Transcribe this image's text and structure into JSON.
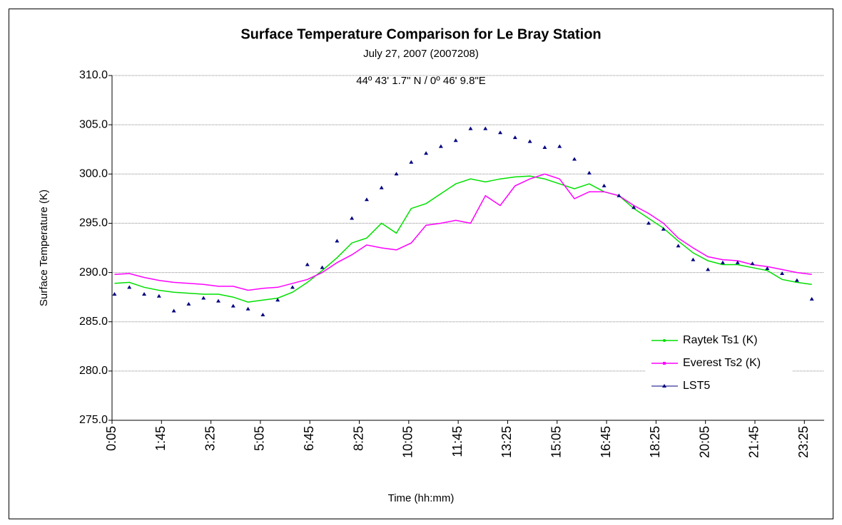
{
  "chart_data": {
    "type": "line",
    "title": "Surface Temperature Comparison for Le Bray Station",
    "subtitle": "July 27, 2007 (2007208)",
    "annotation": "44º 43' 1.7\" N / 0º 46' 9.8\"E",
    "x_label": "Time (hh:mm)",
    "y_label": "Surface Temperature (K)",
    "x": [
      10,
      40,
      70,
      100,
      130,
      160,
      190,
      220,
      250,
      280,
      310,
      340,
      370,
      400,
      430,
      460,
      490,
      520,
      550,
      580,
      610,
      640,
      670,
      700,
      730,
      760,
      790,
      820,
      850,
      880,
      910,
      940,
      970,
      1000,
      1030,
      1060,
      1090,
      1120,
      1150,
      1180,
      1210,
      1240,
      1270,
      1300,
      1330,
      1360,
      1390,
      1420
    ],
    "xlim": [
      5,
      1445
    ],
    "xticks": [
      {
        "value": 5,
        "label": "0:05"
      },
      {
        "value": 105,
        "label": "1:45"
      },
      {
        "value": 205,
        "label": "3:25"
      },
      {
        "value": 305,
        "label": "5:05"
      },
      {
        "value": 405,
        "label": "6:45"
      },
      {
        "value": 505,
        "label": "8:25"
      },
      {
        "value": 605,
        "label": "10:05"
      },
      {
        "value": 705,
        "label": "11:45"
      },
      {
        "value": 805,
        "label": "13:25"
      },
      {
        "value": 905,
        "label": "15:05"
      },
      {
        "value": 1005,
        "label": "16:45"
      },
      {
        "value": 1105,
        "label": "18:25"
      },
      {
        "value": 1205,
        "label": "20:05"
      },
      {
        "value": 1305,
        "label": "21:45"
      },
      {
        "value": 1405,
        "label": "23:25"
      }
    ],
    "ylim": [
      275,
      310
    ],
    "yticks": [
      {
        "value": 275,
        "label": "275.0"
      },
      {
        "value": 280,
        "label": "280.0"
      },
      {
        "value": 285,
        "label": "285.0"
      },
      {
        "value": 290,
        "label": "290.0"
      },
      {
        "value": 295,
        "label": "295.0"
      },
      {
        "value": 300,
        "label": "300.0"
      },
      {
        "value": 305,
        "label": "305.0"
      },
      {
        "value": 310,
        "label": "310.0"
      }
    ],
    "grid": true,
    "legend": "lower right",
    "series": [
      {
        "name": "Raytek Ts1 (K)",
        "color": "#00e000",
        "line": true,
        "marker": "circle",
        "values": [
          288.9,
          289.0,
          288.5,
          288.2,
          288.0,
          287.9,
          287.8,
          287.8,
          287.5,
          287.0,
          287.2,
          287.4,
          288.0,
          289.0,
          290.2,
          291.5,
          293.0,
          293.5,
          295.0,
          294.0,
          296.5,
          297.0,
          298.0,
          299.0,
          299.5,
          299.2,
          299.5,
          299.7,
          299.8,
          299.5,
          299.0,
          298.5,
          299.0,
          298.2,
          297.8,
          296.5,
          295.5,
          294.5,
          293.2,
          292.0,
          291.2,
          290.8,
          290.8,
          290.5,
          290.2,
          289.3,
          289.0,
          288.8
        ]
      },
      {
        "name": "Everest Ts2 (K)",
        "color": "#ff00ff",
        "line": true,
        "marker": "square",
        "values": [
          289.8,
          289.9,
          289.5,
          289.2,
          289.0,
          288.9,
          288.8,
          288.6,
          288.6,
          288.2,
          288.4,
          288.5,
          288.9,
          289.3,
          290.0,
          291.0,
          291.8,
          292.8,
          292.5,
          292.3,
          293.0,
          294.8,
          295.0,
          295.3,
          295.0,
          297.8,
          296.8,
          298.8,
          299.5,
          300.0,
          299.5,
          297.5,
          298.2,
          298.2,
          297.8,
          296.8,
          296.0,
          295.0,
          293.5,
          292.5,
          291.6,
          291.3,
          291.2,
          290.8,
          290.6,
          290.3,
          290.0,
          289.8
        ]
      },
      {
        "name": "LST5",
        "color": "#000080",
        "line": false,
        "marker": "triangle",
        "values": [
          287.8,
          288.5,
          287.8,
          287.6,
          286.1,
          286.8,
          287.4,
          287.1,
          286.6,
          286.3,
          285.7,
          287.2,
          288.5,
          290.8,
          290.5,
          293.2,
          295.5,
          297.4,
          298.6,
          300.0,
          301.2,
          302.1,
          302.8,
          303.4,
          304.6,
          304.6,
          304.2,
          303.7,
          303.3,
          302.7,
          302.8,
          301.5,
          300.1,
          298.8,
          297.8,
          296.6,
          295.0,
          294.4,
          292.7,
          291.3,
          290.3,
          291.0,
          291.0,
          290.9,
          290.4,
          289.9,
          289.2,
          287.3
        ]
      }
    ]
  }
}
